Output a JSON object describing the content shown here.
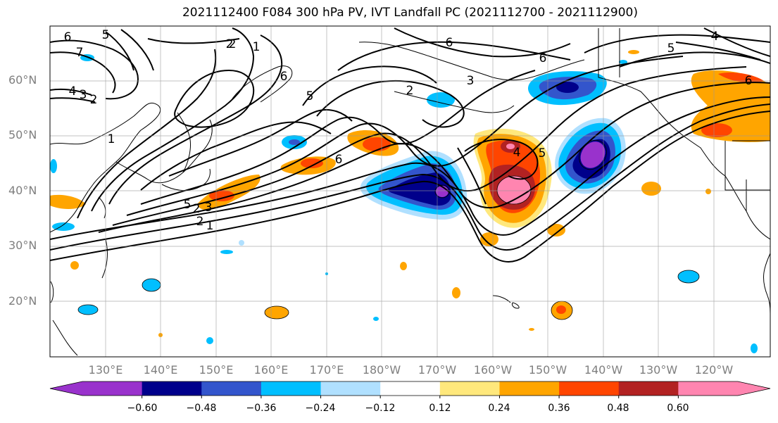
{
  "title": "2021112400 F084 300 hPa PV, IVT Landfall PC (2021112700 - 2021112900)",
  "lat_labels": [
    "60°N",
    "50°N",
    "40°N",
    "30°N",
    "20°N"
  ],
  "lon_labels": [
    "130°E",
    "140°E",
    "150°E",
    "160°E",
    "170°E",
    "180°W",
    "170°W",
    "160°W",
    "150°W",
    "140°W",
    "130°W",
    "120°W"
  ],
  "pv_contour_labels": [
    "6",
    "5",
    "4",
    "3",
    "2",
    "1",
    "7",
    "6",
    "2",
    "1",
    "6",
    "5",
    "2",
    "6",
    "2",
    "3",
    "6",
    "5",
    "4",
    "4",
    "5",
    "6",
    "5",
    "2",
    "3",
    "2",
    "1"
  ],
  "colorbar": {
    "tick_labels": [
      "−0.60",
      "−0.48",
      "−0.36",
      "−0.24",
      "−0.12",
      "0.12",
      "0.24",
      "0.36",
      "0.48",
      "0.60"
    ],
    "colors": [
      "#9932cc",
      "#00008b",
      "#3355cc",
      "#00bfff",
      "#b0e0ff",
      "#ffffff",
      "#ffe87c",
      "#ffa500",
      "#ff4500",
      "#b22222",
      "#ff85b0"
    ]
  }
}
